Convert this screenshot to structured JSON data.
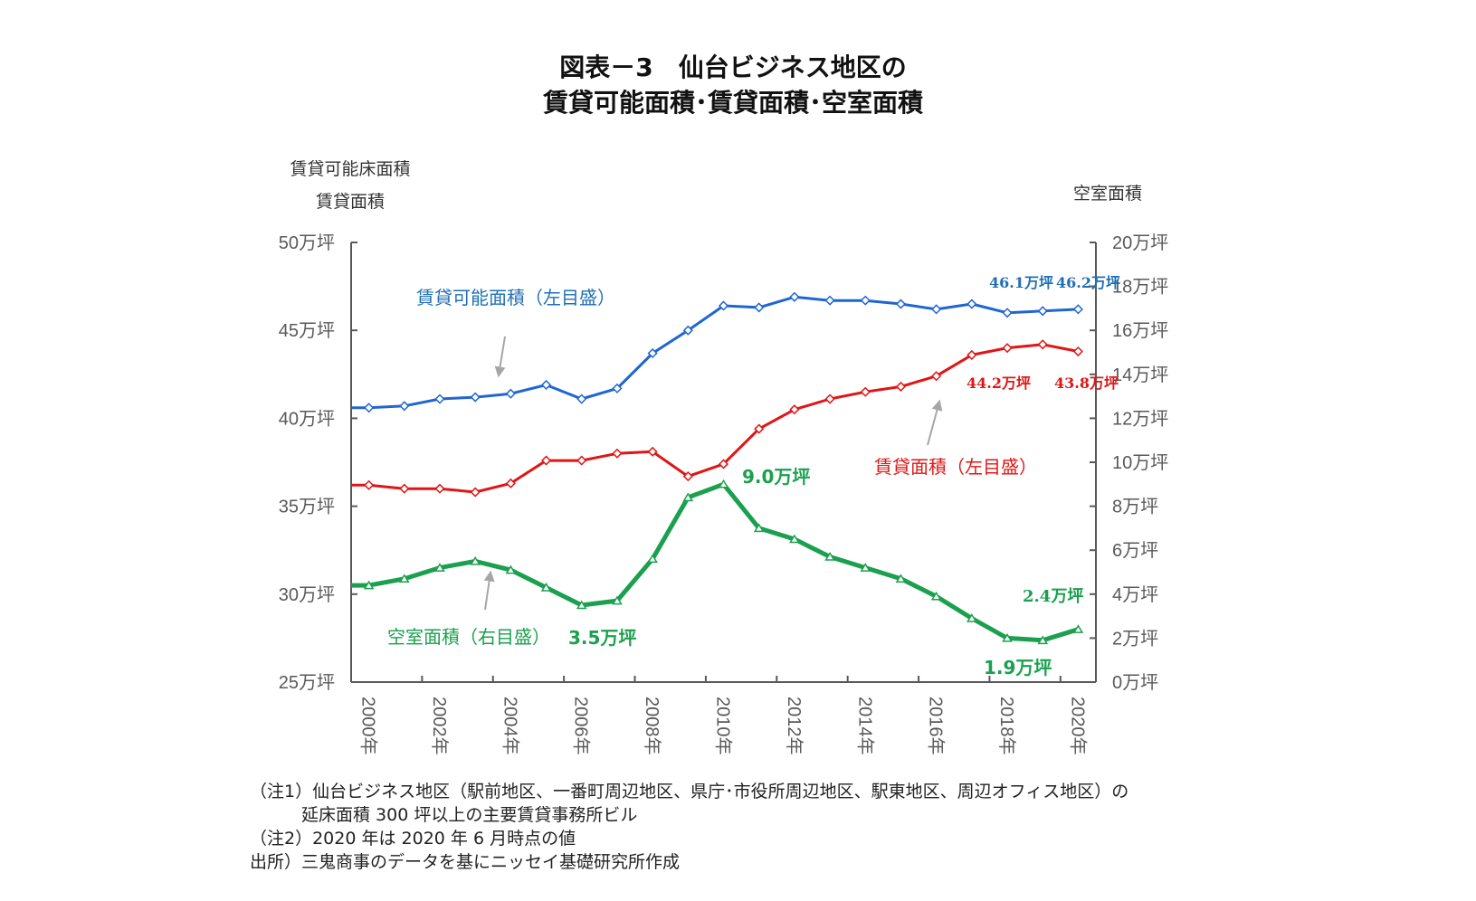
{
  "chart_data": {
    "type": "line",
    "title_lines": [
      "図表－3　仙台ビジネス地区の",
      "賃貸可能面積･賃貸面積･空室面積"
    ],
    "left_axis_title_lines": [
      "賃貸可能床面積",
      "賃貸面積"
    ],
    "right_axis_title": "空室面積",
    "categories": [
      "2000年",
      "2001年",
      "2002年",
      "2003年",
      "2004年",
      "2005年",
      "2006年",
      "2007年",
      "2008年",
      "2009年",
      "2010年",
      "2011年",
      "2012年",
      "2013年",
      "2014年",
      "2015年",
      "2016年",
      "2017年",
      "2018年",
      "2019年",
      "2020年"
    ],
    "x_tick_labels": [
      "2000年",
      "2002年",
      "2004年",
      "2006年",
      "2008年",
      "2010年",
      "2012年",
      "2014年",
      "2016年",
      "2018年",
      "2020年"
    ],
    "y_left": {
      "range": [
        25,
        50
      ],
      "ticks": [
        25,
        30,
        35,
        40,
        45,
        50
      ],
      "tick_labels": [
        "25万坪",
        "30万坪",
        "35万坪",
        "40万坪",
        "45万坪",
        "50万坪"
      ]
    },
    "y_right": {
      "range": [
        0,
        20
      ],
      "ticks": [
        0,
        2,
        4,
        6,
        8,
        10,
        12,
        14,
        16,
        18,
        20
      ],
      "tick_labels": [
        "0万坪",
        "2万坪",
        "4万坪",
        "6万坪",
        "8万坪",
        "10万坪",
        "12万坪",
        "14万坪",
        "16万坪",
        "18万坪",
        "20万坪"
      ]
    },
    "grid": false,
    "series": [
      {
        "name": "賃貸可能面積（左目盛）",
        "axis": "left",
        "color": "#1f66d1",
        "marker": "diamond",
        "values": [
          40.6,
          40.7,
          41.1,
          41.2,
          41.4,
          41.9,
          41.1,
          41.7,
          43.7,
          45.0,
          46.4,
          46.3,
          46.9,
          46.7,
          46.7,
          46.5,
          46.2,
          46.5,
          46.0,
          46.1,
          46.2
        ]
      },
      {
        "name": "賃貸面積（左目盛）",
        "axis": "left",
        "color": "#e01515",
        "marker": "diamond",
        "values": [
          36.2,
          36.0,
          36.0,
          35.8,
          36.3,
          37.6,
          37.6,
          38.0,
          38.1,
          36.7,
          37.4,
          39.4,
          40.5,
          41.1,
          41.5,
          41.8,
          42.4,
          43.6,
          44.0,
          44.2,
          43.8
        ]
      },
      {
        "name": "空室面積（右目盛）",
        "axis": "right",
        "color": "#1aa04e",
        "marker": "triangle",
        "values": [
          4.4,
          4.7,
          5.2,
          5.5,
          5.1,
          4.3,
          3.5,
          3.7,
          5.6,
          8.4,
          9.0,
          7.0,
          6.5,
          5.7,
          5.2,
          4.7,
          3.9,
          2.9,
          2.0,
          1.9,
          2.4
        ]
      }
    ],
    "annotations": {
      "blue_series_label": "賃貸可能面積（左目盛）",
      "red_series_label": "賃貸面積（左目盛）",
      "green_series_label": "空室面積（右目盛）",
      "blue_2019": "46.1万坪",
      "blue_2020": "46.2万坪",
      "red_2019": "44.2万坪",
      "red_2020": "43.8万坪",
      "green_2010": "9.0万坪",
      "green_2006": "3.5万坪",
      "green_2019": "1.9万坪",
      "green_2020": "2.4万坪"
    }
  },
  "notes": [
    "（注1）仙台ビジネス地区（駅前地区、一番町周辺地区、県庁･市役所周辺地区、駅東地区、周辺オフィス地区）の",
    "　　　延床面積 300 坪以上の主要賃貸事務所ビル",
    "（注2）2020 年は 2020 年 6 月時点の値",
    "出所）三鬼商事のデータを基にニッセイ基礎研究所作成"
  ],
  "colors": {
    "blue_label": "#1f6fb5",
    "red_label": "#e01515",
    "green_label": "#1aa04e",
    "axis": "#595959",
    "arrow": "#a6a6a6"
  }
}
